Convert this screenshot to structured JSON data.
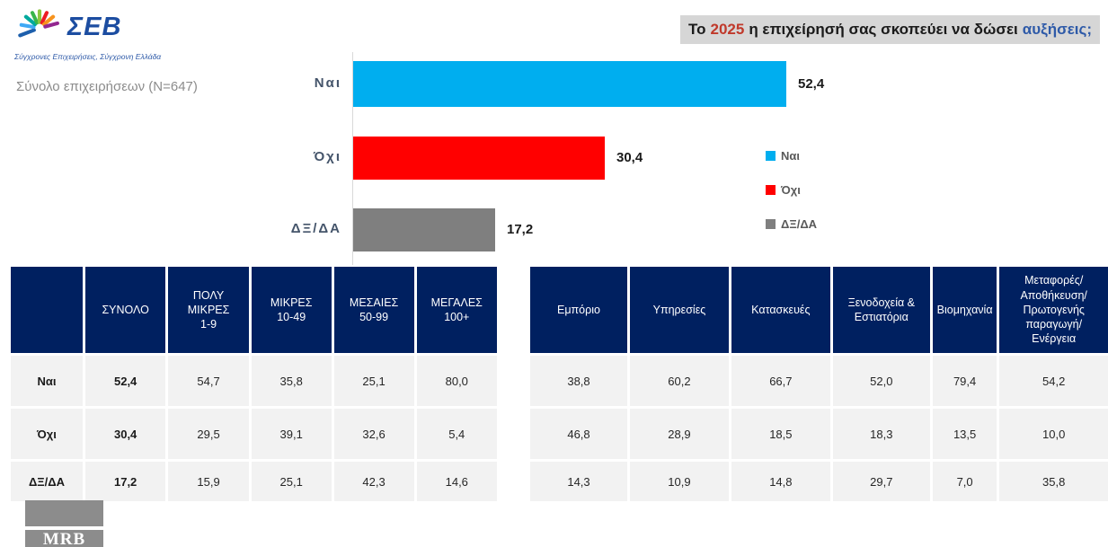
{
  "logo": {
    "name": "ΣΕΒ",
    "tagline": "Σύγχρονες Επιχειρήσεις, Σύγχρονη Ελλάδα"
  },
  "title": {
    "part1": "Το",
    "year": "2025",
    "part2": "η επιχείρησή σας σκοπεύει να δώσει",
    "part3": "αυξήσεις;",
    "year_color": "#C0392B",
    "highlight_color": "#2E5AA8",
    "background": "#D6D6D6"
  },
  "subtitle": "Σύνολο επιχειρήσεων (N=647)",
  "chart_data": {
    "type": "bar",
    "orientation": "horizontal",
    "title": "Το 2025 η επιχείρησή σας σκοπεύει να δώσει αυξήσεις;",
    "categories": [
      "Ναι",
      "Όχι",
      "ΔΞ/ΔΑ"
    ],
    "values": [
      52.4,
      30.4,
      17.2
    ],
    "value_labels": [
      "52,4",
      "30,4",
      "17,2"
    ],
    "colors": [
      "#00AEEF",
      "#FF0000",
      "#7F7F7F"
    ],
    "xlim": [
      0,
      100
    ],
    "grid": false,
    "legend": {
      "position": "right",
      "entries": [
        {
          "label": "Ναι",
          "color": "#00AEEF"
        },
        {
          "label": "Όχι",
          "color": "#FF0000"
        },
        {
          "label": "ΔΞ/ΔΑ",
          "color": "#7F7F7F"
        }
      ]
    }
  },
  "size_table": {
    "columns": [
      "",
      "ΣΥΝΟΛΟ",
      "ΠΟΛΥ\nΜΙΚΡΕΣ\n1-9",
      "ΜΙΚΡΕΣ\n10-49",
      "ΜΕΣΑΙΕΣ\n50-99",
      "ΜΕΓΑΛΕΣ\n100+"
    ],
    "rows": [
      {
        "label": "Ναι",
        "values": [
          "52,4",
          "54,7",
          "35,8",
          "25,1",
          "80,0"
        ]
      },
      {
        "label": "Όχι",
        "values": [
          "30,4",
          "29,5",
          "39,1",
          "32,6",
          "5,4"
        ]
      },
      {
        "label": "ΔΞ/ΔΑ",
        "values": [
          "17,2",
          "15,9",
          "25,1",
          "42,3",
          "14,6"
        ]
      }
    ]
  },
  "sector_table": {
    "columns": [
      "Εμπόριο",
      "Υπηρεσίες",
      "Κατασκευές",
      "Ξενοδοχεία &\nΕστιατόρια",
      "Βιομηχανία",
      "Μεταφορές/\nΑποθήκευση/\nΠρωτογενής\nπαραγωγή/\nΕνέργεια"
    ],
    "rows": [
      [
        "38,8",
        "60,2",
        "66,7",
        "52,0",
        "79,4",
        "54,2"
      ],
      [
        "46,8",
        "28,9",
        "18,5",
        "18,3",
        "13,5",
        "10,0"
      ],
      [
        "14,3",
        "10,9",
        "14,8",
        "29,7",
        "7,0",
        "35,8"
      ]
    ]
  },
  "footer_logo": "MRB",
  "colors": {
    "table_header": "#002060",
    "table_row": "#F2F2F2",
    "axis_line": "#D9D9D9"
  }
}
